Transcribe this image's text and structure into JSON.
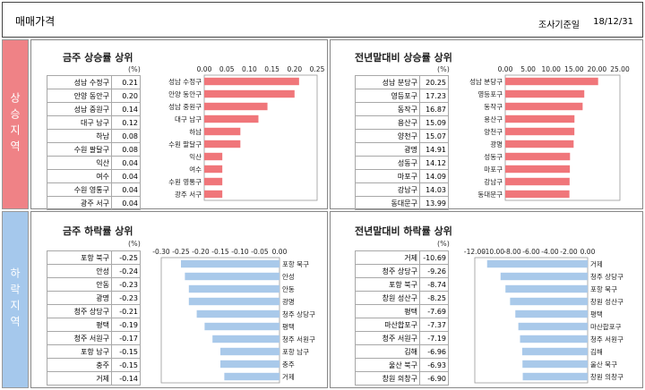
{
  "header": {
    "title": "매매가격",
    "survey_label": "조사기준일",
    "date": "18/12/31"
  },
  "side": {
    "up": "상승지역",
    "down": "하락지역"
  },
  "colors": {
    "up_bar": "#f0767a",
    "down_bar": "#a9c9ea",
    "up_side": "#ef8286",
    "down_side": "#a5c8ec"
  },
  "panels": [
    {
      "title": "금주 상승률 상위",
      "unit": "(%)",
      "rows": [
        {
          "name": "성남 수정구",
          "value": "0.21"
        },
        {
          "name": "안양 동안구",
          "value": "0.20"
        },
        {
          "name": "성남 중원구",
          "value": "0.14"
        },
        {
          "name": "대구 남구",
          "value": "0.12"
        },
        {
          "name": "하남",
          "value": "0.08"
        },
        {
          "name": "수원 팔달구",
          "value": "0.08"
        },
        {
          "name": "익산",
          "value": "0.04"
        },
        {
          "name": "여수",
          "value": "0.04"
        },
        {
          "name": "수원 영통구",
          "value": "0.04"
        },
        {
          "name": "광주 서구",
          "value": "0.04"
        }
      ]
    },
    {
      "title": "전년말대비 상승률 상위",
      "unit": "(%)",
      "rows": [
        {
          "name": "성남 분당구",
          "value": "20.25"
        },
        {
          "name": "영등포구",
          "value": "17.23"
        },
        {
          "name": "동작구",
          "value": "16.87"
        },
        {
          "name": "용산구",
          "value": "15.09"
        },
        {
          "name": "양천구",
          "value": "15.07"
        },
        {
          "name": "광명",
          "value": "14.91"
        },
        {
          "name": "성동구",
          "value": "14.12"
        },
        {
          "name": "마포구",
          "value": "14.09"
        },
        {
          "name": "강남구",
          "value": "14.03"
        },
        {
          "name": "동대문구",
          "value": "13.99"
        }
      ]
    },
    {
      "title": "금주 하락률 상위",
      "unit": "(%)",
      "rows": [
        {
          "name": "포항 북구",
          "value": "-0.25"
        },
        {
          "name": "안성",
          "value": "-0.24"
        },
        {
          "name": "안동",
          "value": "-0.23"
        },
        {
          "name": "광명",
          "value": "-0.23"
        },
        {
          "name": "청주 상당구",
          "value": "-0.21"
        },
        {
          "name": "평택",
          "value": "-0.19"
        },
        {
          "name": "청주 서원구",
          "value": "-0.17"
        },
        {
          "name": "포항 남구",
          "value": "-0.15"
        },
        {
          "name": "충주",
          "value": "-0.15"
        },
        {
          "name": "거제",
          "value": "-0.14"
        }
      ]
    },
    {
      "title": "전년말대비 하락률 상위",
      "unit": "(%)",
      "rows": [
        {
          "name": "거제",
          "value": "-10.69"
        },
        {
          "name": "청주 상당구",
          "value": "-9.26"
        },
        {
          "name": "포항 북구",
          "value": "-8.74"
        },
        {
          "name": "창원 성산구",
          "value": "-8.25"
        },
        {
          "name": "평택",
          "value": "-7.69"
        },
        {
          "name": "마산합포구",
          "value": "-7.37"
        },
        {
          "name": "청주 서원구",
          "value": "-7.19"
        },
        {
          "name": "김해",
          "value": "-6.96"
        },
        {
          "name": "울산 북구",
          "value": "-6.93"
        },
        {
          "name": "창원 의창구",
          "value": "-6.90"
        }
      ]
    }
  ],
  "chart_data": [
    {
      "type": "bar",
      "orientation": "horizontal",
      "categories": [
        "성남 수정구",
        "안양 동안구",
        "성남 중원구",
        "대구 남구",
        "하남",
        "수원 팔달구",
        "익산",
        "여수",
        "수원 영통구",
        "광주 서구"
      ],
      "values": [
        0.21,
        0.2,
        0.14,
        0.12,
        0.08,
        0.08,
        0.04,
        0.04,
        0.04,
        0.04
      ],
      "xlim": [
        0,
        0.25
      ],
      "ticks": [
        "0.00",
        "0.05",
        "0.10",
        "0.15",
        "0.20",
        "0.25"
      ],
      "color": "#f0767a"
    },
    {
      "type": "bar",
      "orientation": "horizontal",
      "categories": [
        "성남 분당구",
        "영등포구",
        "동작구",
        "용산구",
        "양천구",
        "광명",
        "성동구",
        "마포구",
        "강남구",
        "동대문구"
      ],
      "values": [
        20.25,
        17.23,
        16.87,
        15.09,
        15.07,
        14.91,
        14.12,
        14.09,
        14.03,
        13.99
      ],
      "xlim": [
        0,
        25
      ],
      "ticks": [
        "0.00",
        "5.00",
        "10.00",
        "15.00",
        "20.00",
        "25.00"
      ],
      "color": "#f0767a"
    },
    {
      "type": "bar",
      "orientation": "horizontal",
      "categories": [
        "포항 북구",
        "안성",
        "안동",
        "광명",
        "청주 상당구",
        "평택",
        "청주 서원구",
        "포항 남구",
        "충주",
        "거제"
      ],
      "values": [
        -0.25,
        -0.24,
        -0.23,
        -0.23,
        -0.21,
        -0.19,
        -0.17,
        -0.15,
        -0.15,
        -0.14
      ],
      "xlim": [
        -0.3,
        0
      ],
      "ticks": [
        "-0.30",
        "-0.25",
        "-0.20",
        "-0.15",
        "-0.10",
        "-0.05",
        "0.00"
      ],
      "color": "#a9c9ea"
    },
    {
      "type": "bar",
      "orientation": "horizontal",
      "categories": [
        "거제",
        "청주 상당구",
        "포항 북구",
        "창원 성산구",
        "평택",
        "마산합포구",
        "청주 서원구",
        "김해",
        "울산 북구",
        "창원 의창구"
      ],
      "values": [
        -10.69,
        -9.26,
        -8.74,
        -8.25,
        -7.69,
        -7.37,
        -7.19,
        -6.96,
        -6.93,
        -6.9
      ],
      "xlim": [
        -12,
        0
      ],
      "ticks": [
        "-12.00",
        "-10.00",
        "-8.00",
        "-6.00",
        "-4.00",
        "-2.00",
        "0.00"
      ],
      "color": "#a9c9ea"
    }
  ]
}
